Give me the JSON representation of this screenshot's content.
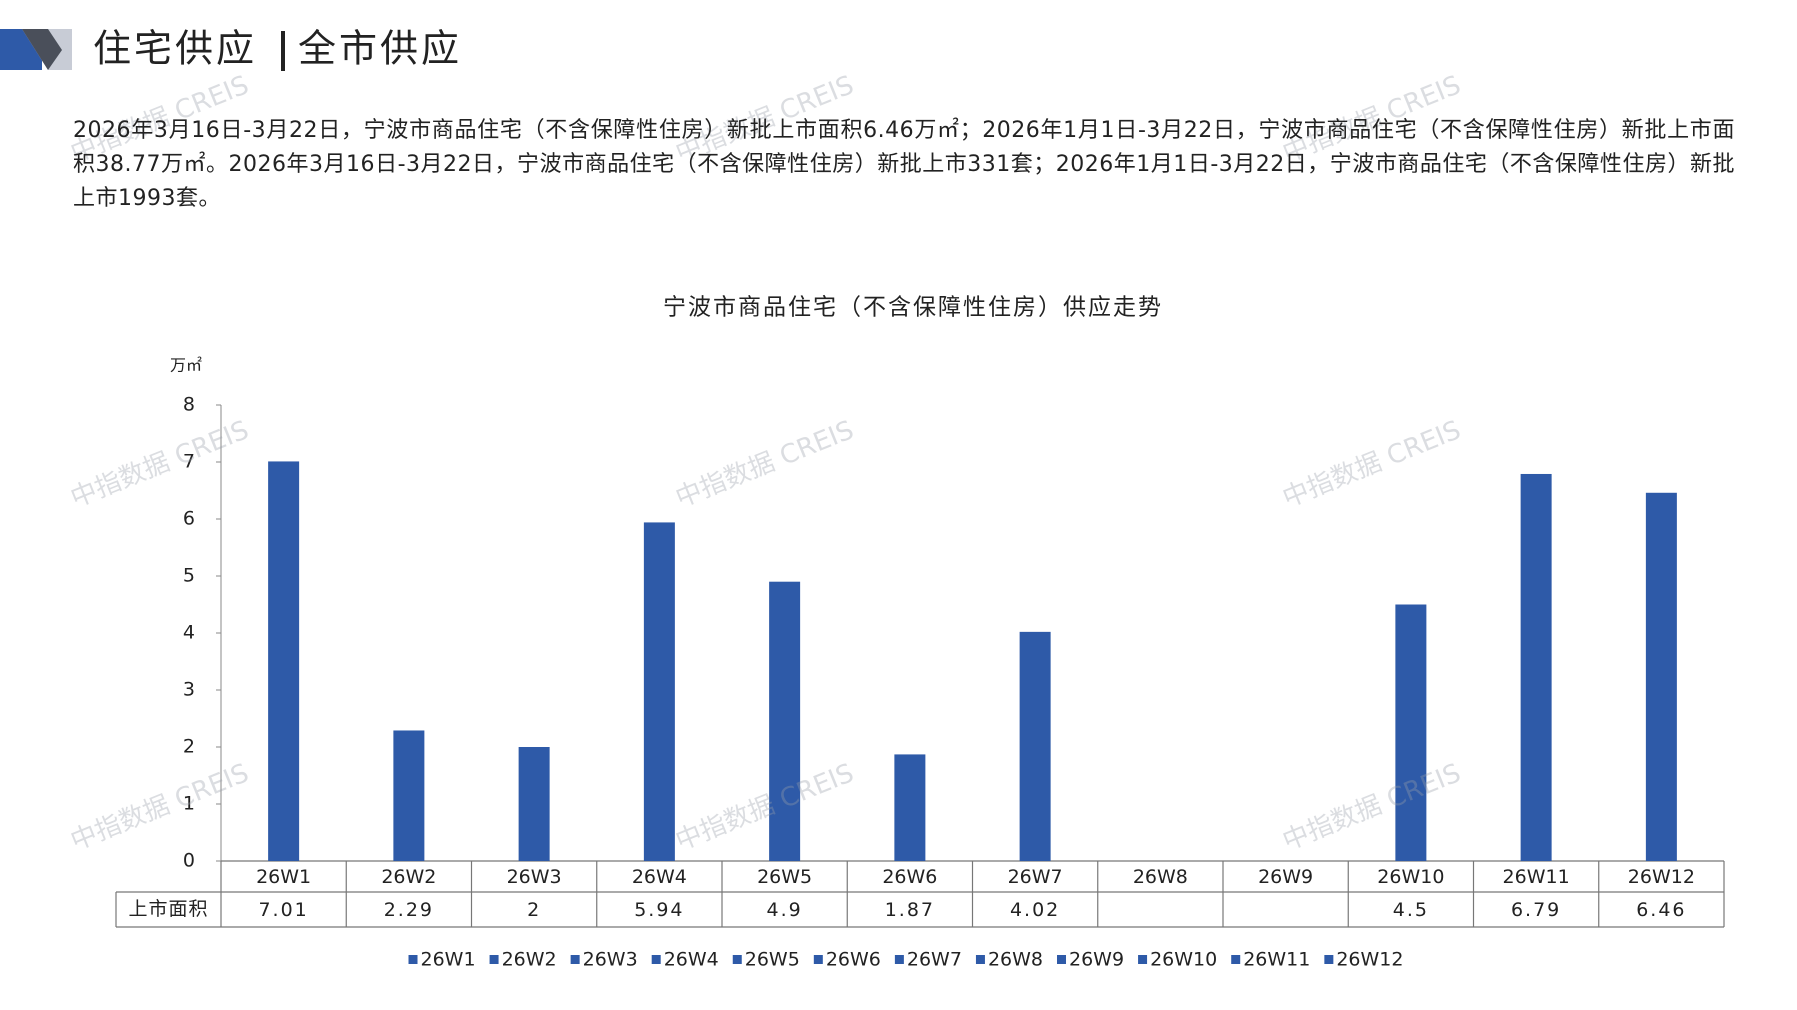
{
  "header": {
    "title": "住宅供应",
    "subtitle": "全市供应"
  },
  "paragraph": "2026年3月16日-3月22日，宁波市商品住宅（不含保障性住房）新批上市面积6.46万㎡；2026年1月1日-3月22日，宁波市商品住宅（不含保障性住房）新批上市面积38.77万㎡。2026年3月16日-3月22日，宁波市商品住宅（不含保障性住房）新批上市331套；2026年1月1日-3月22日，宁波市商品住宅（不含保障性住房）新批上市1993套。",
  "watermark": "中指数据 CREIS",
  "chart_data": {
    "type": "bar",
    "title": "宁波市商品住宅（不含保障性住房）供应走势",
    "y_unit": "万㎡",
    "categories": [
      "26W1",
      "26W2",
      "26W3",
      "26W4",
      "26W5",
      "26W6",
      "26W7",
      "26W8",
      "26W9",
      "26W10",
      "26W11",
      "26W12"
    ],
    "series": [
      {
        "name": "上市面积",
        "color": "#2e5aa8",
        "values": [
          7.01,
          2.29,
          2,
          5.94,
          4.9,
          1.87,
          4.02,
          null,
          null,
          4.5,
          6.79,
          6.46
        ]
      }
    ],
    "ylim": [
      0,
      8
    ],
    "yticks": [
      0,
      1,
      2,
      3,
      4,
      5,
      6,
      7,
      8
    ]
  }
}
